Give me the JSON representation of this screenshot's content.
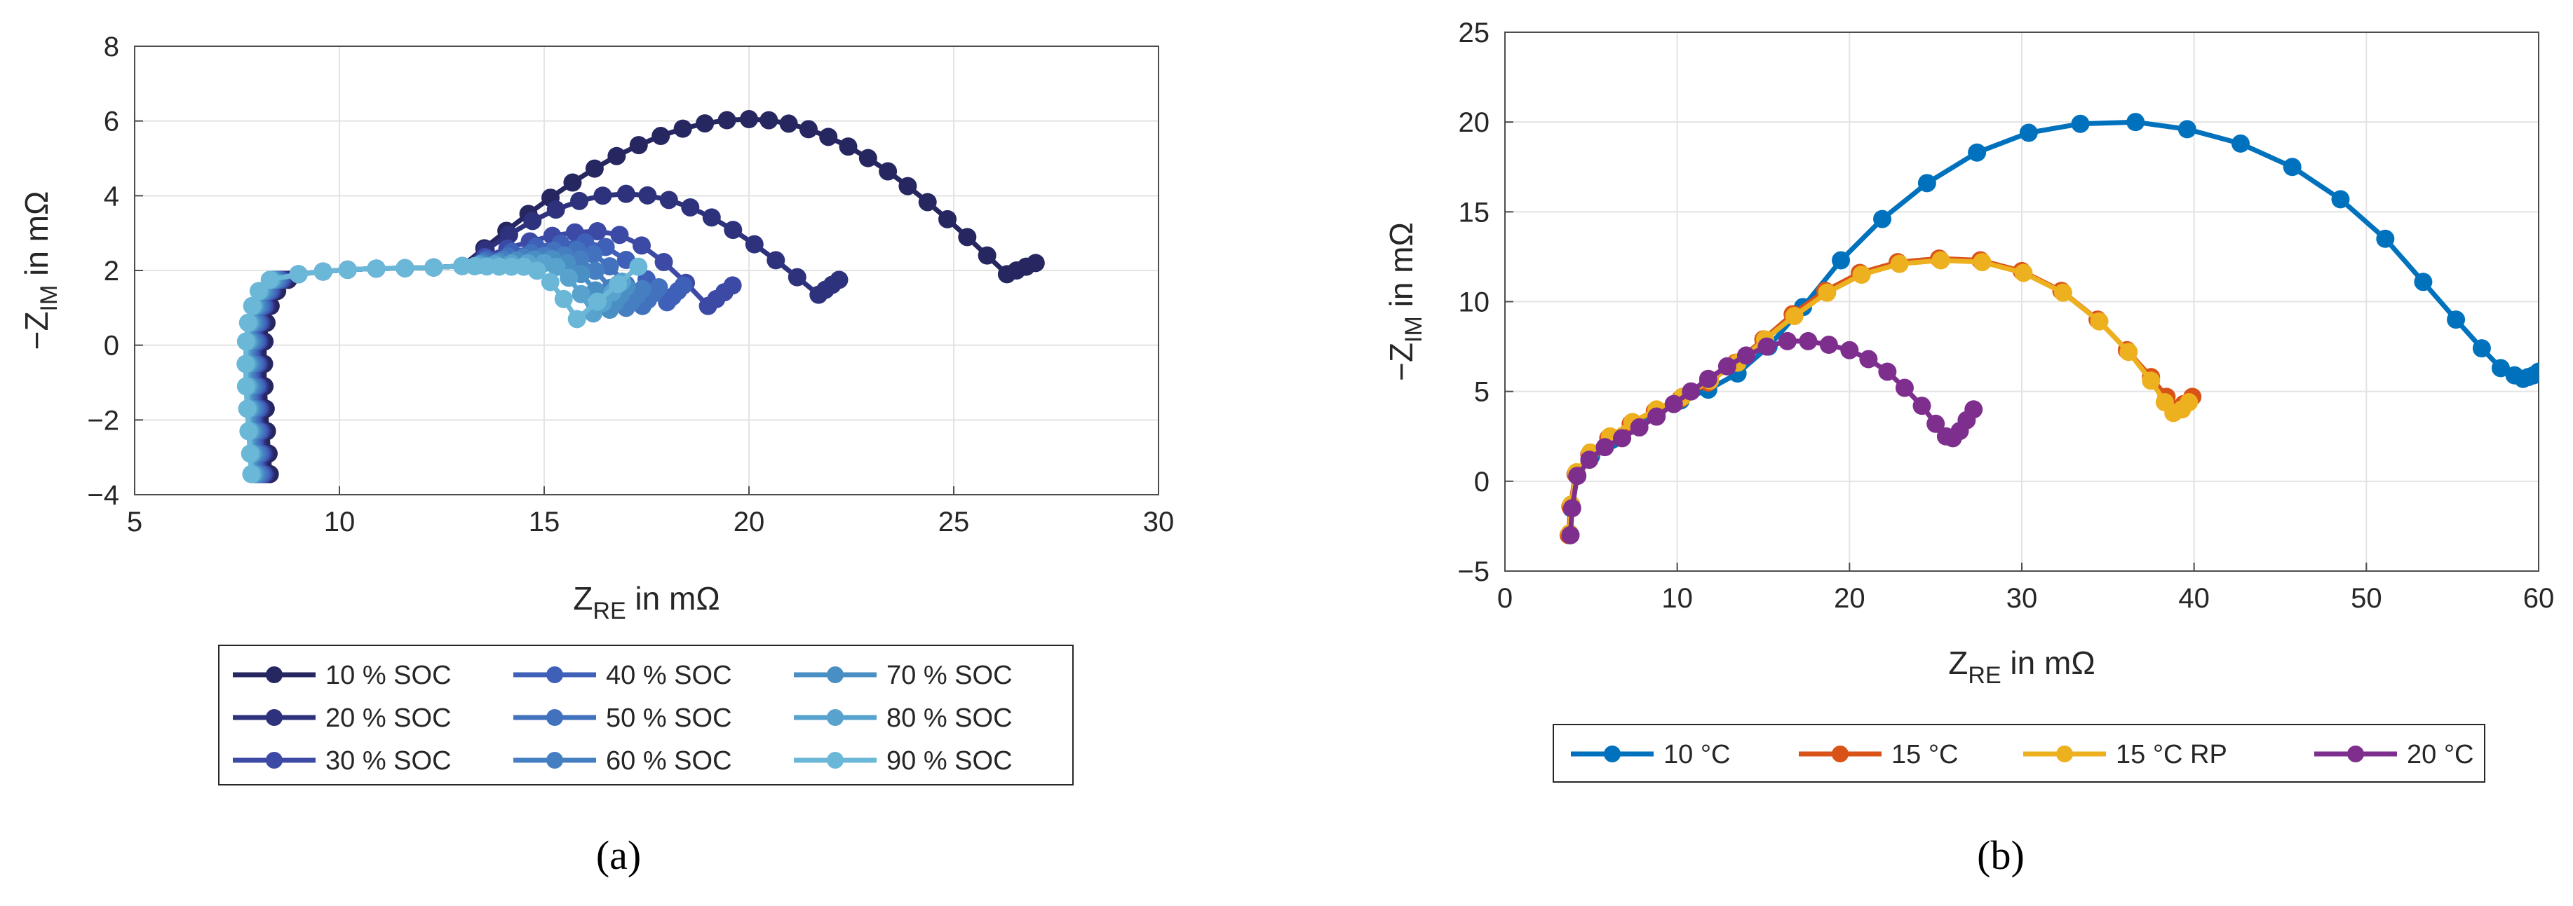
{
  "colors": {
    "soc": [
      "#262660",
      "#2e327c",
      "#3c4aa6",
      "#3f60b8",
      "#4271bd",
      "#467fc1",
      "#4a8fc4",
      "#57a3ce",
      "#6ab7d8"
    ],
    "temp": [
      "#0072bd",
      "#d95319",
      "#edb120",
      "#7e2f8e"
    ]
  },
  "chart_data": [
    {
      "type": "line",
      "id": "a",
      "caption": "(a)",
      "xlabel": "Z_RE in mΩ",
      "ylabel": "-Z_IM in mΩ",
      "xlim": [
        5,
        30
      ],
      "ylim": [
        -4,
        8
      ],
      "xticks": [
        5,
        10,
        15,
        20,
        25,
        30
      ],
      "yticks": [
        -4,
        -2,
        0,
        2,
        4,
        6,
        8
      ],
      "grid": true,
      "legend": {
        "placement": "below",
        "columns": 3
      },
      "series": [
        {
          "name": "10 % SOC",
          "peak_x": 20.0,
          "peak_y": 6.05,
          "min_x": 26.3,
          "min_y": 1.9,
          "end_x": 27.0,
          "end_y": 2.2,
          "start_x": 8.3
        },
        {
          "name": "20 % SOC",
          "peak_x": 17.0,
          "peak_y": 4.05,
          "min_x": 21.7,
          "min_y": 1.35,
          "end_x": 22.2,
          "end_y": 1.75,
          "start_x": 8.2
        },
        {
          "name": "30 % SOC",
          "peak_x": 16.3,
          "peak_y": 3.05,
          "min_x": 19.0,
          "min_y": 1.05,
          "end_x": 19.6,
          "end_y": 1.6,
          "start_x": 8.15
        },
        {
          "name": "40 % SOC",
          "peak_x": 16.0,
          "peak_y": 2.75,
          "min_x": 18.0,
          "min_y": 1.15,
          "end_x": 18.4,
          "end_y": 1.6,
          "start_x": 8.1
        },
        {
          "name": "50 % SOC",
          "peak_x": 15.8,
          "peak_y": 2.55,
          "min_x": 17.4,
          "min_y": 1.05,
          "end_x": 17.8,
          "end_y": 1.55,
          "start_x": 8.05
        },
        {
          "name": "60 % SOC",
          "peak_x": 15.5,
          "peak_y": 2.4,
          "min_x": 17.0,
          "min_y": 1.0,
          "end_x": 17.4,
          "end_y": 1.5,
          "start_x": 8.0
        },
        {
          "name": "70 % SOC",
          "peak_x": 15.2,
          "peak_y": 2.3,
          "min_x": 16.6,
          "min_y": 0.95,
          "end_x": 17.0,
          "end_y": 1.55,
          "start_x": 7.95
        },
        {
          "name": "80 % SOC",
          "peak_x": 15.0,
          "peak_y": 2.2,
          "min_x": 16.2,
          "min_y": 0.85,
          "end_x": 16.9,
          "end_y": 1.7,
          "start_x": 7.9
        },
        {
          "name": "90 % SOC",
          "peak_x": 14.5,
          "peak_y": 2.1,
          "min_x": 15.8,
          "min_y": 0.7,
          "end_x": 17.3,
          "end_y": 2.1,
          "start_x": 7.85
        }
      ]
    },
    {
      "type": "line",
      "id": "b",
      "caption": "(b)",
      "xlabel": "Z_RE in mΩ",
      "ylabel": "-Z_IM in mΩ",
      "xlim": [
        0,
        60
      ],
      "ylim": [
        -5,
        25
      ],
      "xticks": [
        0,
        10,
        20,
        30,
        40,
        50,
        60
      ],
      "yticks": [
        -5,
        0,
        5,
        10,
        15,
        20,
        25
      ],
      "grid": true,
      "legend": {
        "placement": "below",
        "columns": 4
      },
      "series": [
        {
          "name": "10 °C",
          "x": [
            3.8,
            3.85,
            4.2,
            5.0,
            6.2,
            7.5,
            8.8,
            10.2,
            11.8,
            13.5,
            15.3,
            17.3,
            19.5,
            21.9,
            24.5,
            27.4,
            30.4,
            33.4,
            36.6,
            39.6,
            42.7,
            45.7,
            48.5,
            51.1,
            53.3,
            55.2,
            56.7,
            57.8,
            58.6,
            59.1,
            59.4,
            59.7,
            60.0
          ],
          "y": [
            -3.0,
            -1.5,
            0.3,
            1.4,
            2.3,
            3.1,
            3.8,
            4.5,
            5.1,
            6.0,
            7.5,
            9.7,
            12.3,
            14.6,
            16.6,
            18.3,
            19.4,
            19.9,
            20.0,
            19.6,
            18.8,
            17.5,
            15.7,
            13.5,
            11.1,
            9.0,
            7.4,
            6.3,
            5.9,
            5.7,
            5.8,
            5.9,
            6.1
          ]
        },
        {
          "name": "15 °C",
          "x": [
            3.7,
            3.8,
            4.1,
            4.9,
            6.0,
            7.3,
            8.7,
            10.2,
            11.8,
            13.4,
            15.0,
            16.7,
            18.6,
            20.6,
            22.8,
            25.2,
            27.6,
            30.0,
            32.3,
            34.4,
            36.1,
            37.5,
            38.4,
            38.9,
            39.4,
            39.9
          ],
          "y": [
            -3.0,
            -1.4,
            0.4,
            1.5,
            2.4,
            3.2,
            3.9,
            4.6,
            5.5,
            6.6,
            7.9,
            9.3,
            10.6,
            11.6,
            12.2,
            12.4,
            12.3,
            11.7,
            10.6,
            9.0,
            7.3,
            5.8,
            4.7,
            4.0,
            4.3,
            4.7
          ]
        },
        {
          "name": "15 °C RP",
          "x": [
            3.75,
            3.85,
            4.15,
            4.95,
            6.1,
            7.4,
            8.8,
            10.3,
            11.9,
            13.5,
            15.1,
            16.8,
            18.7,
            20.7,
            22.9,
            25.3,
            27.7,
            30.1,
            32.4,
            34.5,
            36.2,
            37.5,
            38.3,
            38.8,
            39.3,
            39.7
          ],
          "y": [
            -2.9,
            -1.3,
            0.5,
            1.6,
            2.5,
            3.3,
            4.0,
            4.7,
            5.6,
            6.6,
            7.9,
            9.2,
            10.5,
            11.5,
            12.1,
            12.3,
            12.2,
            11.6,
            10.5,
            8.9,
            7.2,
            5.6,
            4.4,
            3.8,
            4.0,
            4.4
          ]
        },
        {
          "name": "20 °C",
          "x": [
            3.8,
            3.9,
            4.2,
            4.9,
            5.8,
            6.8,
            7.8,
            8.8,
            9.8,
            10.8,
            11.8,
            12.9,
            14.0,
            15.2,
            16.4,
            17.6,
            18.8,
            20.0,
            21.1,
            22.2,
            23.2,
            24.2,
            25.0,
            25.6,
            26.0,
            26.4,
            26.8,
            27.2
          ],
          "y": [
            -3.0,
            -1.5,
            0.3,
            1.2,
            1.9,
            2.4,
            3.0,
            3.6,
            4.3,
            5.0,
            5.7,
            6.4,
            7.0,
            7.5,
            7.8,
            7.8,
            7.6,
            7.3,
            6.8,
            6.1,
            5.2,
            4.2,
            3.2,
            2.5,
            2.4,
            2.8,
            3.4,
            4.0
          ]
        }
      ]
    }
  ]
}
